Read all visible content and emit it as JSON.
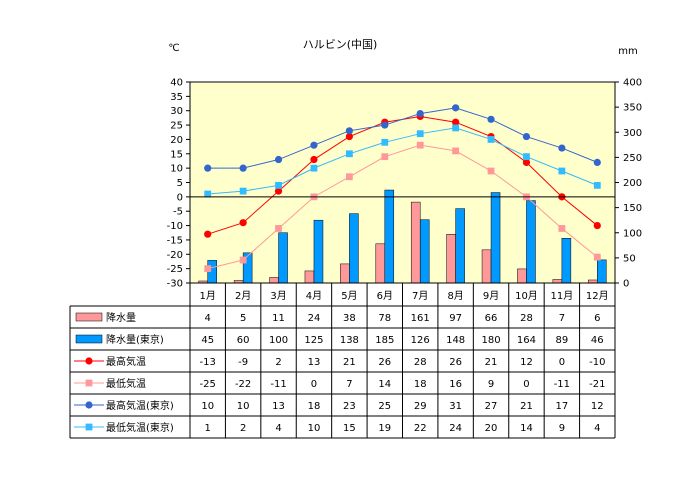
{
  "chart_data": {
    "type": "bar",
    "title": "ハルビン(中国)",
    "left_unit": "℃",
    "right_unit": "mm",
    "categories": [
      "1月",
      "2月",
      "3月",
      "4月",
      "5月",
      "6月",
      "7月",
      "8月",
      "9月",
      "10月",
      "11月",
      "12月"
    ],
    "y_left": {
      "min": -30,
      "max": 40,
      "ticks": [
        "40",
        "35",
        "30",
        "25",
        "20",
        "15",
        "10",
        "5",
        "0",
        "-5",
        "-10",
        "-15",
        "-20",
        "-25",
        "-30"
      ]
    },
    "y_right": {
      "min": 0,
      "max": 400,
      "ticks": [
        "400",
        "350",
        "300",
        "250",
        "200",
        "150",
        "100",
        "50",
        "0"
      ]
    },
    "plot_background": "#ffffcc",
    "series": [
      {
        "name": "降水量",
        "kind": "bar",
        "axis": "right",
        "color": "#ff9999",
        "values": [
          4,
          5,
          11,
          24,
          38,
          78,
          161,
          97,
          66,
          28,
          7,
          6
        ],
        "labels": [
          "4",
          "5",
          "11",
          "24",
          "38",
          "78",
          "161",
          "97",
          "66",
          "28",
          "7",
          "6"
        ]
      },
      {
        "name": "降水量(東京)",
        "kind": "bar",
        "axis": "right",
        "color": "#0099ff",
        "values": [
          45,
          60,
          100,
          125,
          138,
          185,
          126,
          148,
          180,
          164,
          89,
          46
        ],
        "labels": [
          "45",
          "60",
          "100",
          "125",
          "138",
          "185",
          "126",
          "148",
          "180",
          "164",
          "89",
          "46"
        ]
      },
      {
        "name": "最高気温",
        "kind": "line",
        "axis": "left",
        "color": "#ff0000",
        "marker": "circle",
        "values": [
          -13,
          -9,
          2,
          13,
          21,
          26,
          28,
          26,
          21,
          12,
          0,
          -10
        ],
        "labels": [
          "-13",
          "-9",
          "2",
          "13",
          "21",
          "26",
          "28",
          "26",
          "21",
          "12",
          "0",
          "-10"
        ]
      },
      {
        "name": "最低気温",
        "kind": "line",
        "axis": "left",
        "color": "#ff9999",
        "marker": "square",
        "values": [
          -25,
          -22,
          -11,
          0,
          7,
          14,
          18,
          16,
          9,
          0,
          -11,
          -21
        ],
        "labels": [
          "-25",
          "-22",
          "-11",
          "0",
          "7",
          "14",
          "18",
          "16",
          "9",
          "0",
          "-11",
          "-21"
        ]
      },
      {
        "name": "最高気温(東京)",
        "kind": "line",
        "axis": "left",
        "color": "#3366cc",
        "marker": "circle",
        "values": [
          10,
          10,
          13,
          18,
          23,
          25,
          29,
          31,
          27,
          21,
          17,
          12
        ],
        "labels": [
          "10",
          "10",
          "13",
          "18",
          "23",
          "25",
          "29",
          "31",
          "27",
          "21",
          "17",
          "12"
        ]
      },
      {
        "name": "最低気温(東京)",
        "kind": "line",
        "axis": "left",
        "color": "#33bbff",
        "marker": "square",
        "values": [
          1,
          2,
          4,
          10,
          15,
          19,
          22,
          24,
          20,
          14,
          9,
          4
        ],
        "labels": [
          "1",
          "2",
          "4",
          "10",
          "15",
          "19",
          "22",
          "24",
          "20",
          "14",
          "9",
          "4"
        ]
      }
    ]
  }
}
